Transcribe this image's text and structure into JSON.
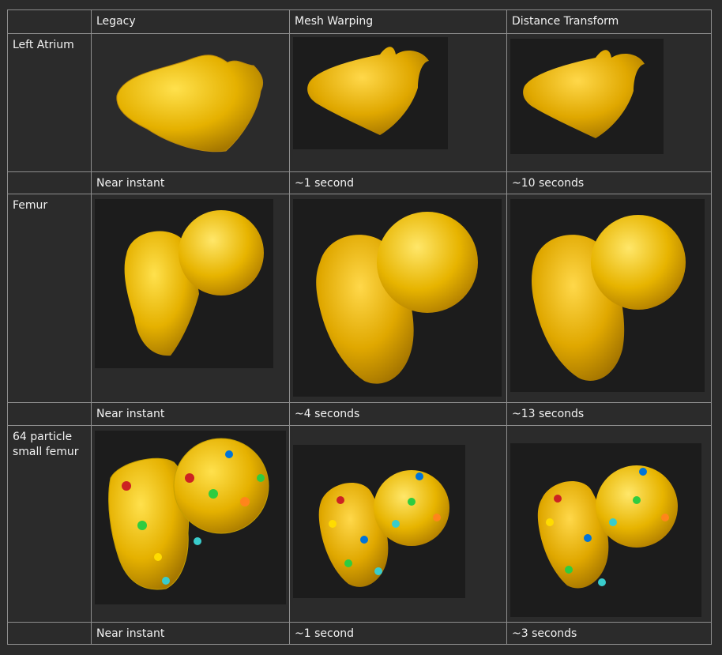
{
  "columns": [
    "",
    "Legacy",
    "Mesh Warping",
    "Distance Transform"
  ],
  "rows": [
    {
      "label": "Left Atrium",
      "times": [
        "Near instant",
        "~1 second",
        "~10 seconds"
      ]
    },
    {
      "label": "Femur",
      "times": [
        "Near instant",
        "~4 seconds",
        "~13 seconds"
      ]
    },
    {
      "label": "64 particle small femur",
      "times": [
        "Near instant",
        "~1 second",
        "~3 seconds"
      ]
    }
  ]
}
